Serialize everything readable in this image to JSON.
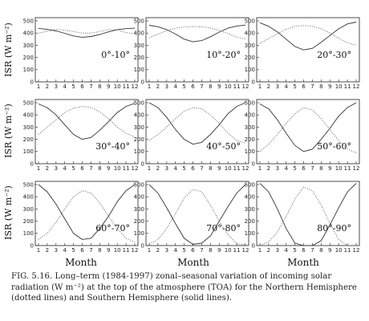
{
  "figure": {
    "y_axis_label": "ISR (W m⁻²)",
    "x_axis_label": "Month",
    "caption": "FIG. 5.16. Long–term (1984-1997) zonal–seasonal variation of incoming solar radiation (W m⁻²) at the top of the atmosphere (TOA) for the Northern Hemisphere (dotted lines) and Southern Hemisphere (solid lines)."
  },
  "chart_data": {
    "type": "line",
    "x": [
      1,
      2,
      3,
      4,
      5,
      6,
      7,
      8,
      9,
      10,
      11,
      12
    ],
    "xlabel": "Month",
    "ylabel": "ISR (W m⁻²)",
    "ylim": [
      0,
      500
    ],
    "yticks": [
      0,
      100,
      200,
      300,
      400,
      500
    ],
    "grid": false,
    "line_styles": {
      "Northern Hemisphere": "dotted",
      "Southern Hemisphere": "solid"
    },
    "panels": [
      {
        "title": "0°-10°",
        "north": [
          400,
          414,
          430,
          424,
          412,
          400,
          400,
          412,
          428,
          426,
          404,
          396
        ],
        "south": [
          438,
          430,
          418,
          398,
          376,
          366,
          372,
          388,
          410,
          428,
          436,
          440
        ]
      },
      {
        "title": "10°-20°",
        "north": [
          360,
          392,
          420,
          440,
          450,
          454,
          452,
          442,
          422,
          396,
          366,
          352
        ],
        "south": [
          464,
          452,
          428,
          392,
          350,
          328,
          338,
          370,
          408,
          440,
          458,
          466
        ]
      },
      {
        "title": "20°-30°",
        "north": [
          315,
          355,
          395,
          430,
          455,
          462,
          455,
          435,
          400,
          358,
          320,
          302
        ],
        "south": [
          485,
          455,
          410,
          350,
          290,
          262,
          275,
          325,
          380,
          435,
          475,
          490
        ]
      },
      {
        "title": "30°-40°",
        "north": [
          240,
          300,
          360,
          420,
          455,
          470,
          460,
          425,
          370,
          300,
          250,
          220
        ],
        "south": [
          490,
          460,
          400,
          320,
          240,
          200,
          215,
          275,
          345,
          420,
          470,
          495
        ]
      },
      {
        "title": "40°-50°",
        "north": [
          190,
          240,
          300,
          370,
          430,
          460,
          450,
          400,
          330,
          250,
          190,
          170
        ],
        "south": [
          500,
          460,
          380,
          280,
          200,
          160,
          175,
          240,
          320,
          410,
          470,
          500
        ]
      },
      {
        "title": "50°-60°",
        "north": [
          100,
          160,
          240,
          330,
          410,
          460,
          440,
          370,
          280,
          190,
          120,
          90
        ],
        "south": [
          490,
          450,
          360,
          250,
          150,
          100,
          120,
          200,
          290,
          390,
          460,
          500
        ]
      },
      {
        "title": "60°-70°",
        "north": [
          50,
          100,
          190,
          300,
          400,
          450,
          430,
          350,
          240,
          140,
          60,
          30
        ],
        "south": [
          500,
          440,
          340,
          220,
          100,
          50,
          60,
          140,
          240,
          360,
          450,
          500
        ]
      },
      {
        "title": "70°-80°",
        "north": [
          10,
          50,
          140,
          260,
          390,
          460,
          440,
          330,
          200,
          90,
          15,
          5
        ],
        "south": [
          500,
          430,
          310,
          180,
          60,
          10,
          20,
          80,
          200,
          320,
          430,
          500
        ]
      },
      {
        "title": "80°-90°",
        "north": [
          0,
          30,
          110,
          240,
          380,
          480,
          450,
          330,
          180,
          50,
          0,
          0
        ],
        "south": [
          510,
          440,
          300,
          140,
          20,
          0,
          0,
          40,
          170,
          310,
          440,
          510
        ]
      }
    ]
  }
}
